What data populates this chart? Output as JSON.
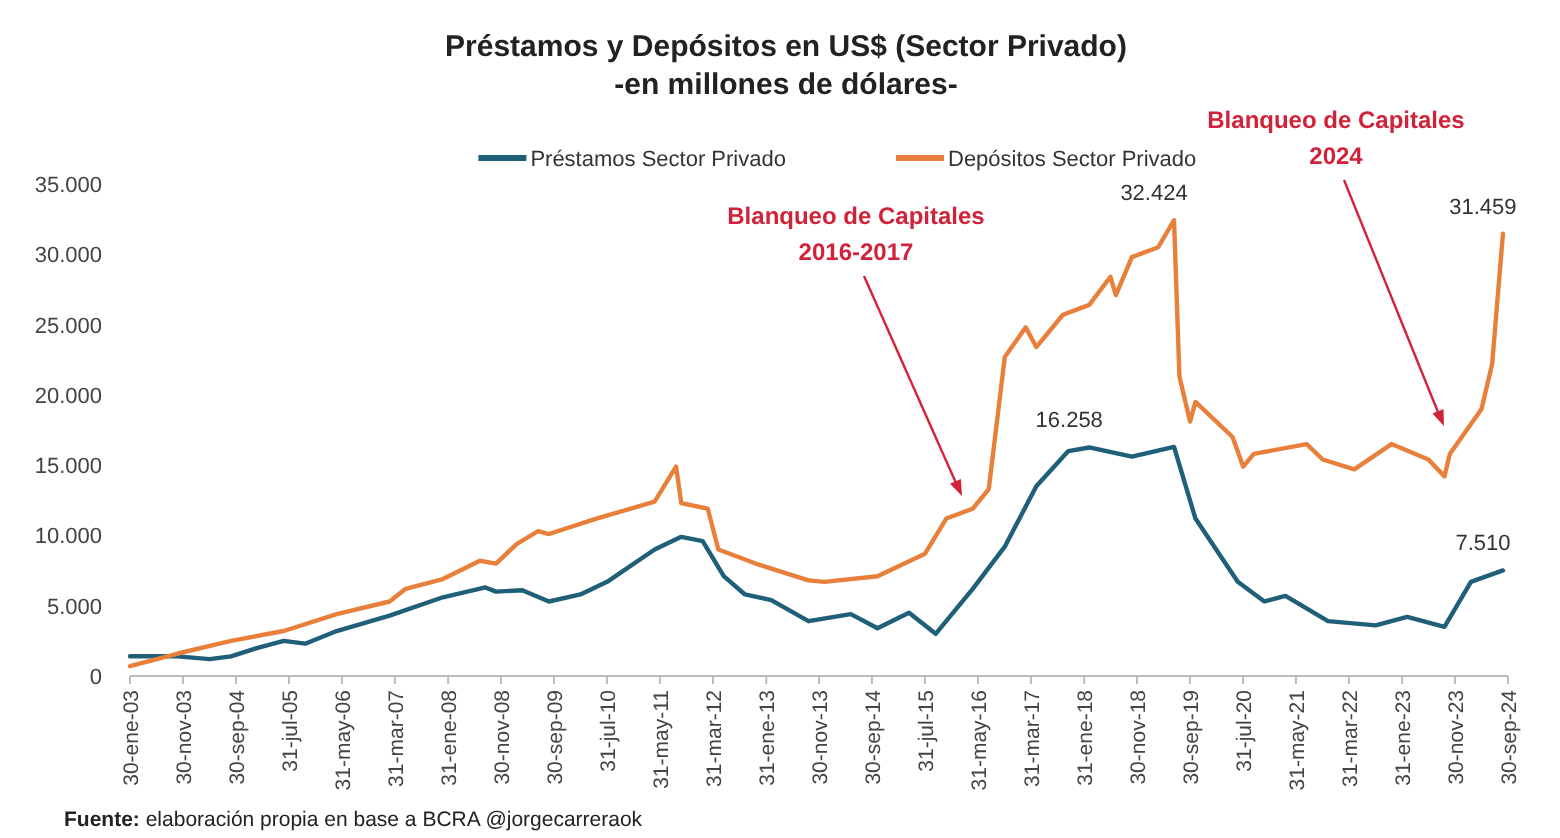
{
  "chart_data": {
    "type": "line",
    "title": "Préstamos y Depósitos en US$ (Sector Privado)",
    "subtitle": "-en millones de dólares-",
    "xlim": [
      "2003-01-30",
      "2024-09-30"
    ],
    "xticks": [
      {
        "value": "2003-01-30",
        "label": "30-ene-03"
      },
      {
        "value": "2003-11-30",
        "label": "30-nov-03"
      },
      {
        "value": "2004-09-30",
        "label": "30-sep-04"
      },
      {
        "value": "2005-07-31",
        "label": "31-jul-05"
      },
      {
        "value": "2006-05-31",
        "label": "31-may-06"
      },
      {
        "value": "2007-03-31",
        "label": "31-mar-07"
      },
      {
        "value": "2008-01-31",
        "label": "31-ene-08"
      },
      {
        "value": "2008-11-30",
        "label": "30-nov-08"
      },
      {
        "value": "2009-09-30",
        "label": "30-sep-09"
      },
      {
        "value": "2010-07-31",
        "label": "31-jul-10"
      },
      {
        "value": "2011-05-31",
        "label": "31-may-11"
      },
      {
        "value": "2012-03-31",
        "label": "31-mar-12"
      },
      {
        "value": "2013-01-31",
        "label": "31-ene-13"
      },
      {
        "value": "2013-11-30",
        "label": "30-nov-13"
      },
      {
        "value": "2014-09-30",
        "label": "30-sep-14"
      },
      {
        "value": "2015-07-31",
        "label": "31-jul-15"
      },
      {
        "value": "2016-05-31",
        "label": "31-may-16"
      },
      {
        "value": "2017-03-31",
        "label": "31-mar-17"
      },
      {
        "value": "2018-01-31",
        "label": "31-ene-18"
      },
      {
        "value": "2018-11-30",
        "label": "30-nov-18"
      },
      {
        "value": "2019-09-30",
        "label": "30-sep-19"
      },
      {
        "value": "2020-07-31",
        "label": "31-jul-20"
      },
      {
        "value": "2021-05-31",
        "label": "31-may-21"
      },
      {
        "value": "2022-03-31",
        "label": "31-mar-22"
      },
      {
        "value": "2023-01-31",
        "label": "31-ene-23"
      },
      {
        "value": "2023-11-30",
        "label": "30-nov-23"
      },
      {
        "value": "2024-09-30",
        "label": "30-sep-24"
      }
    ],
    "ylim": [
      0,
      35000
    ],
    "yticks": [
      0,
      {
        "value": 5000,
        "label": "5.000"
      },
      {
        "value": 10000,
        "label": "10.000"
      },
      {
        "value": 15000,
        "label": "15.000"
      },
      {
        "value": 20000,
        "label": "20.000"
      },
      {
        "value": 25000,
        "label": "25.000"
      },
      {
        "value": 30000,
        "label": "30.000"
      },
      {
        "value": 35000,
        "label": "35.000"
      }
    ],
    "grid": false,
    "legend": "top",
    "marker": "none",
    "line_style": "solid",
    "series": [
      {
        "name": "Préstamos Sector Privado",
        "color": "#1f5f7a",
        "x": [
          "2003-01-30",
          "2003-11",
          "2004-05",
          "2004-09",
          "2005-02",
          "2005-07",
          "2005-11",
          "2006-05",
          "2007-03",
          "2008-01",
          "2008-09",
          "2008-11",
          "2009-04",
          "2009-09",
          "2010-03",
          "2010-08",
          "2011-05",
          "2011-10",
          "2012-02",
          "2012-06",
          "2012-10",
          "2013-03",
          "2013-10",
          "2014-06",
          "2014-11",
          "2015-05",
          "2015-10",
          "2016-05",
          "2016-11",
          "2017-05",
          "2017-11",
          "2018-03",
          "2018-11",
          "2019-07",
          "2019-11",
          "2020-07",
          "2020-12",
          "2021-04",
          "2021-12",
          "2022-09",
          "2023-03",
          "2023-10",
          "2024-03",
          "2024-09"
        ],
        "values": [
          1400,
          1400,
          1200,
          1400,
          2000,
          2500,
          2300,
          3200,
          4300,
          5600,
          6300,
          6000,
          6100,
          5300,
          5800,
          6700,
          9000,
          9900,
          9600,
          7100,
          5800,
          5400,
          3900,
          4400,
          3400,
          4500,
          3000,
          6200,
          9200,
          13500,
          16000,
          16258,
          15600,
          16300,
          11200,
          6700,
          5300,
          5700,
          3900,
          3600,
          4200,
          3500,
          6700,
          7510
        ]
      },
      {
        "name": "Depósitos Sector Privado",
        "color": "#e8803c",
        "x": [
          "2003-01-30",
          "2003-11",
          "2004-09",
          "2005-07",
          "2006-05",
          "2007-03",
          "2007-06",
          "2008-01",
          "2008-08",
          "2008-11",
          "2009-03",
          "2009-07",
          "2009-09",
          "2010-06",
          "2011-05",
          "2011-09",
          "2011-10",
          "2012-03",
          "2012-05",
          "2012-12",
          "2013-10",
          "2014-01",
          "2014-11",
          "2015-08",
          "2015-12",
          "2016-05",
          "2016-08",
          "2016-11",
          "2017-03",
          "2017-05",
          "2017-10",
          "2018-03",
          "2018-07",
          "2018-08",
          "2018-11",
          "2019-04",
          "2019-07",
          "2019-08",
          "2019-10",
          "2019-11",
          "2020-06",
          "2020-08",
          "2020-10",
          "2021-08",
          "2021-11",
          "2022-05",
          "2022-12",
          "2023-07",
          "2023-10",
          "2023-11",
          "2024-05",
          "2024-07",
          "2024-09"
        ],
        "values": [
          700,
          1600,
          2500,
          3200,
          4400,
          5300,
          6200,
          6900,
          8200,
          8000,
          9400,
          10300,
          10100,
          11200,
          12400,
          14900,
          12300,
          11900,
          9000,
          8000,
          6800,
          6700,
          7100,
          8700,
          11200,
          11900,
          13300,
          22700,
          24800,
          23400,
          25700,
          26400,
          28400,
          27100,
          29800,
          30500,
          32424,
          21300,
          18100,
          19500,
          17000,
          14900,
          15800,
          16500,
          15400,
          14700,
          16500,
          15400,
          14200,
          15800,
          19000,
          22200,
          31459
        ]
      }
    ],
    "annotations": [
      {
        "text": "32.424",
        "x": "2019-07",
        "y": 32424
      },
      {
        "text": "16.258",
        "x": "2018-03",
        "y": 16258
      },
      {
        "text": "31.459",
        "x": "2024-09",
        "y": 31459
      },
      {
        "text": "7.510",
        "x": "2024-09",
        "y": 7510
      },
      "Blanqueo de Capitales\n2016-2017",
      "Blanqueo de Capitales\n2024",
      "Fuente: elaboración propia en base a BCRA @jorgecarreraok"
    ]
  }
}
